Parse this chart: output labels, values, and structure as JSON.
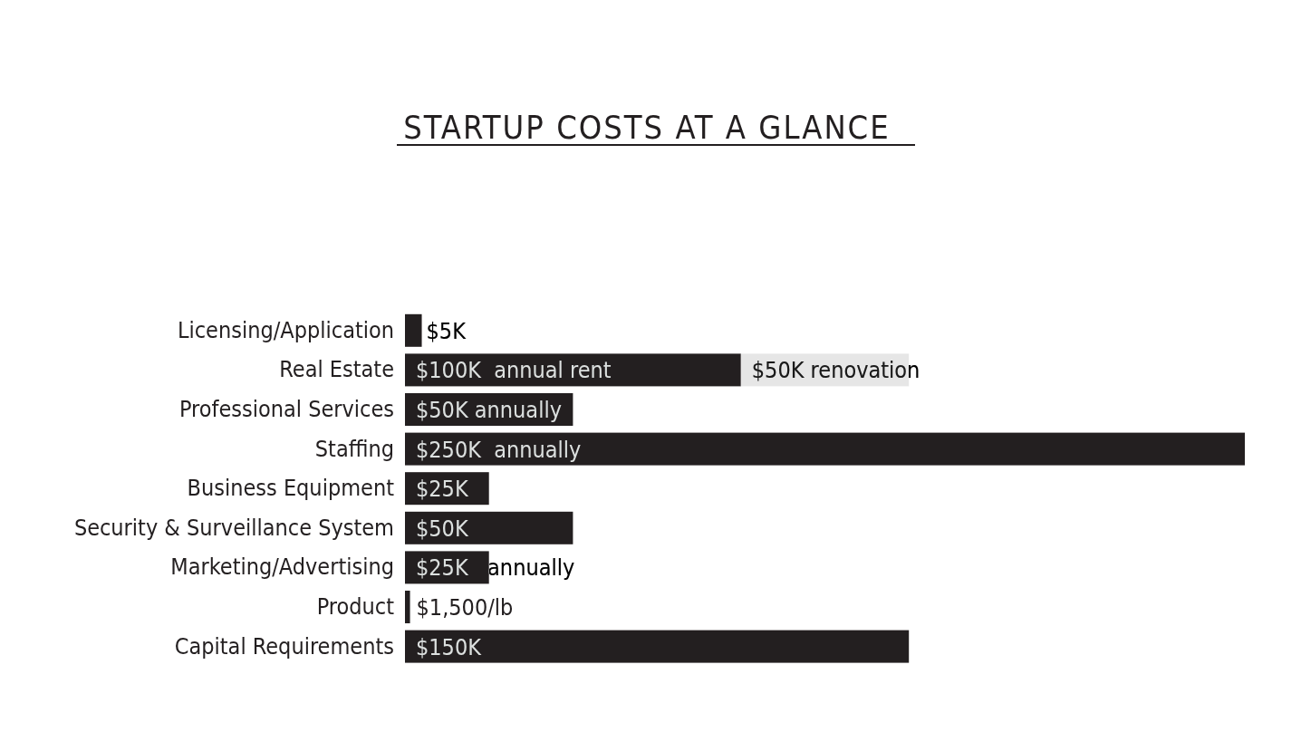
{
  "chart_data": {
    "type": "bar",
    "orientation": "horizontal",
    "stacked": true,
    "title": "STARTUP COSTS AT A GLANCE",
    "categories": [
      "Licensing/Application",
      "Real Estate",
      "Professional Services",
      "Staffing",
      "Business Equipment",
      "Security & Surveillance System",
      "Marketing/Advertising",
      "Product",
      "Capital Requirements"
    ],
    "series": [
      {
        "color": "#231f20",
        "values": [
          5,
          100,
          50,
          250,
          25,
          50,
          25,
          1.5,
          150
        ],
        "value_labels": [
          "$5K",
          "$100K  annual rent",
          "$50K annually",
          "$250K  annually",
          "$25K",
          "$50K",
          "$25K   annually",
          null,
          "$150K"
        ]
      },
      {
        "color": "#e6e6e6",
        "values": [
          null,
          50,
          null,
          null,
          null,
          null,
          null,
          null,
          null
        ],
        "value_labels": [
          null,
          "$50K renovation",
          null,
          null,
          null,
          null,
          null,
          null,
          null
        ]
      }
    ],
    "xlim": [
      0,
      250
    ],
    "tick_labels": "y",
    "annotations": [
      {
        "text": "$1,500/lb",
        "x": 1.5,
        "y": "Product"
      }
    ]
  }
}
